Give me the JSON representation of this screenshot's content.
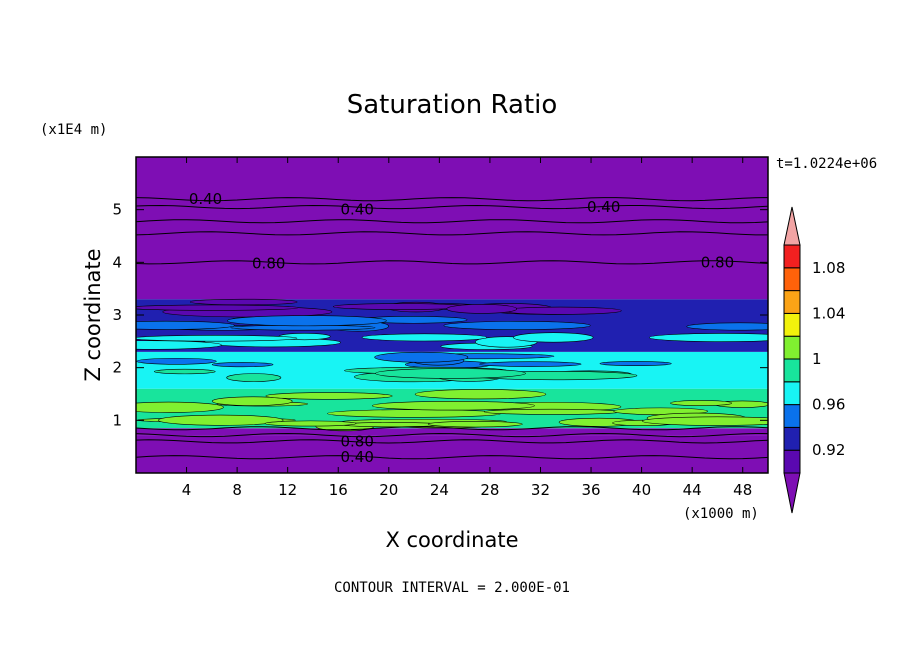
{
  "chart_data": {
    "type": "heatmap",
    "title": "Saturation Ratio",
    "xlabel": "X coordinate",
    "ylabel": "Z coordinate",
    "x_units": "(x1000 m)",
    "y_units": "(x1E4 m)",
    "time_label": "t=1.0224e+06",
    "footer": "CONTOUR INTERVAL = 2.000E-01",
    "xlim": [
      0,
      50
    ],
    "ylim": [
      0,
      6
    ],
    "x_ticks": [
      4,
      8,
      12,
      16,
      20,
      24,
      28,
      32,
      36,
      40,
      44,
      48
    ],
    "y_ticks": [
      1,
      2,
      3,
      4,
      5
    ],
    "contour_interval": 0.2,
    "colorbar": {
      "ticks": [
        1.08,
        1.04,
        1,
        0.96,
        0.92
      ],
      "colors": [
        "#5a08b0",
        "#2020b0",
        "#0a72ec",
        "#18f4f4",
        "#18e49c",
        "#80f030",
        "#f2f20c",
        "#fba316",
        "#ff620a",
        "#f22020"
      ],
      "under_color": "#7e0eb4",
      "over_color": "#f2a4a4"
    },
    "bands": [
      {
        "z_bottom": 0.0,
        "z_top": 0.72,
        "value": 0.4,
        "label": "0.40"
      },
      {
        "z_bottom": 0.72,
        "z_top": 0.85,
        "value": 0.8,
        "label": "0.80"
      },
      {
        "z_bottom": 0.85,
        "z_top": 1.6,
        "value": 0.99,
        "label": ""
      },
      {
        "z_bottom": 1.6,
        "z_top": 2.3,
        "value": 0.97,
        "label": ""
      },
      {
        "z_bottom": 2.3,
        "z_top": 3.3,
        "value": 0.93,
        "label": ""
      },
      {
        "z_bottom": 3.3,
        "z_top": 6.0,
        "value": 0.6,
        "label": ""
      }
    ],
    "contour_labels": [
      {
        "x": 5.5,
        "z": 5.2,
        "text": "0.40"
      },
      {
        "x": 17.5,
        "z": 5.0,
        "text": "0.40"
      },
      {
        "x": 37.0,
        "z": 5.05,
        "text": "0.40"
      },
      {
        "x": 10.5,
        "z": 3.98,
        "text": "0.80"
      },
      {
        "x": 46.0,
        "z": 4.0,
        "text": "0.80"
      },
      {
        "x": 17.5,
        "z": 0.6,
        "text": "0.80"
      },
      {
        "x": 17.5,
        "z": 0.3,
        "text": "0.40"
      }
    ]
  }
}
